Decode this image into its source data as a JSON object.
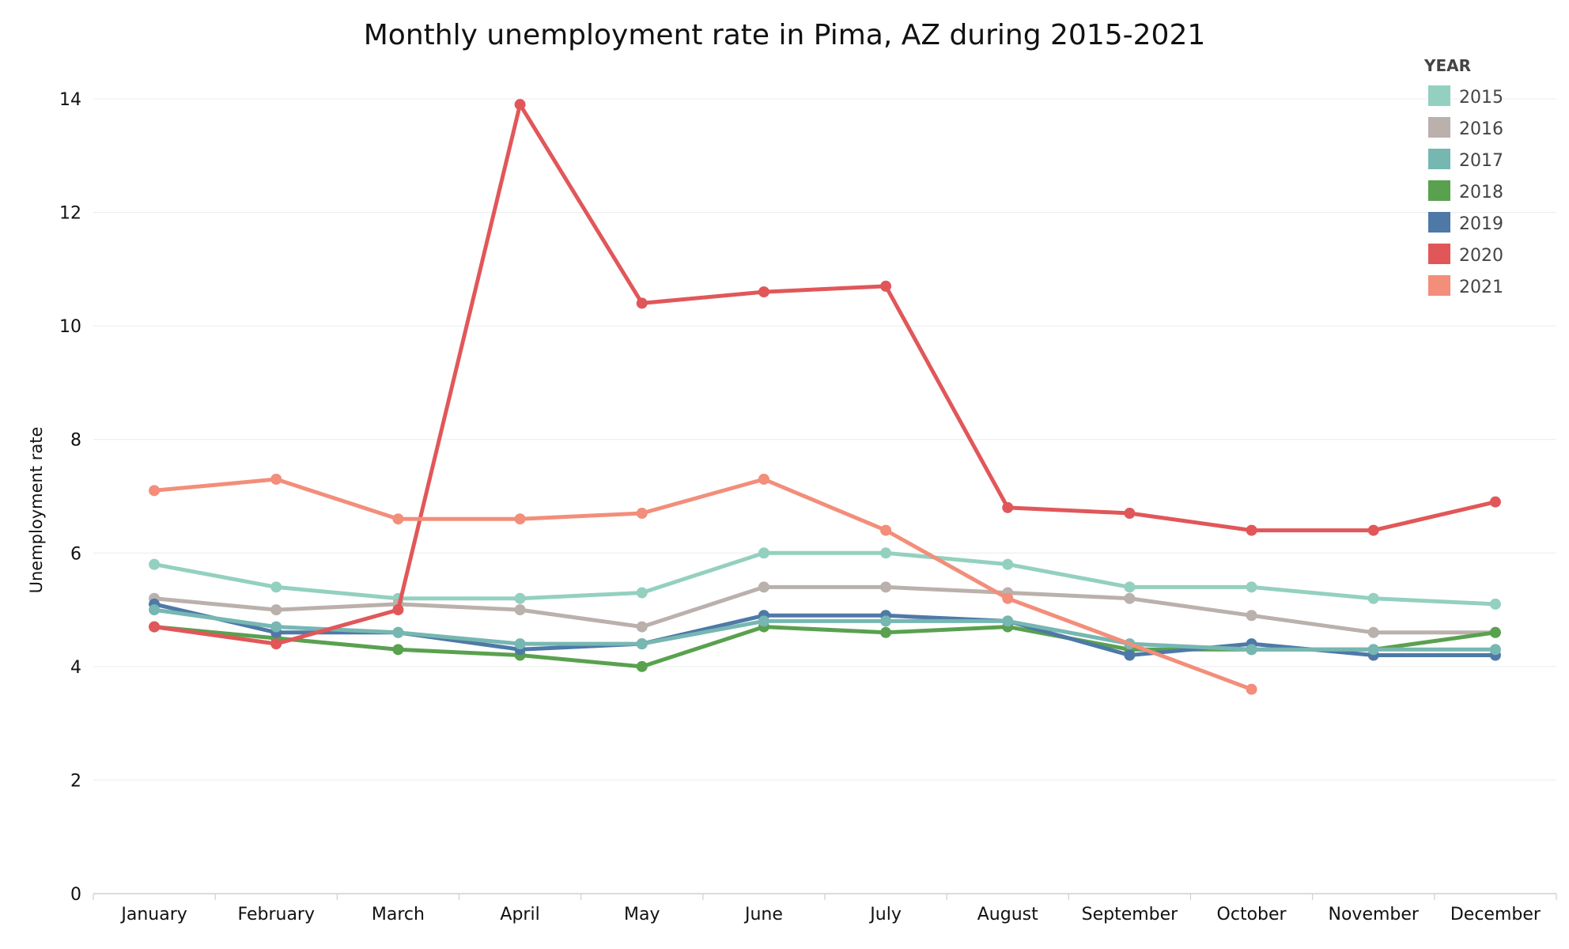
{
  "chart_data": {
    "type": "line",
    "title": "Monthly unemployment rate in Pima, AZ during 2015-2021",
    "xlabel": "",
    "ylabel": "Unemployment rate",
    "ylim": [
      0,
      14
    ],
    "yticks": [
      "0",
      "2",
      "4",
      "6",
      "8",
      "10",
      "12",
      "14"
    ],
    "grid": true,
    "legend_title": "YEAR",
    "legend_position": "top-right",
    "categories": [
      "January",
      "February",
      "March",
      "April",
      "May",
      "June",
      "July",
      "August",
      "September",
      "October",
      "November",
      "December"
    ],
    "series": [
      {
        "name": "2015",
        "color": "#93d0bf",
        "values": [
          5.8,
          5.4,
          5.2,
          5.2,
          5.3,
          6.0,
          6.0,
          5.8,
          5.4,
          5.4,
          5.2,
          5.1
        ]
      },
      {
        "name": "2016",
        "color": "#bab0ac",
        "values": [
          5.2,
          5.0,
          5.1,
          5.0,
          4.7,
          5.4,
          5.4,
          5.3,
          5.2,
          4.9,
          4.6,
          4.6
        ]
      },
      {
        "name": "2018",
        "color": "#59a14f",
        "values": [
          4.7,
          4.5,
          4.3,
          4.2,
          4.0,
          4.7,
          4.6,
          4.7,
          4.3,
          4.3,
          4.3,
          4.6
        ]
      },
      {
        "name": "2019",
        "color": "#4e79a7",
        "values": [
          5.1,
          4.6,
          4.6,
          4.3,
          4.4,
          4.9,
          4.9,
          4.8,
          4.2,
          4.4,
          4.2,
          4.2
        ]
      },
      {
        "name": "2017",
        "color": "#76b7b2",
        "values": [
          5.0,
          4.7,
          4.6,
          4.4,
          4.4,
          4.8,
          4.8,
          4.8,
          4.4,
          4.3,
          4.3,
          4.3
        ]
      },
      {
        "name": "2020",
        "color": "#e15759",
        "values": [
          4.7,
          4.4,
          5.0,
          13.9,
          10.4,
          10.6,
          10.7,
          6.8,
          6.7,
          6.4,
          6.4,
          6.9
        ]
      },
      {
        "name": "2021",
        "color": "#f28e7a",
        "values": [
          7.1,
          7.3,
          6.6,
          6.6,
          6.7,
          7.3,
          6.4,
          5.2,
          null,
          3.6,
          null,
          null
        ]
      }
    ],
    "legend_order": [
      "2015",
      "2016",
      "2017",
      "2018",
      "2019",
      "2020",
      "2021"
    ]
  }
}
